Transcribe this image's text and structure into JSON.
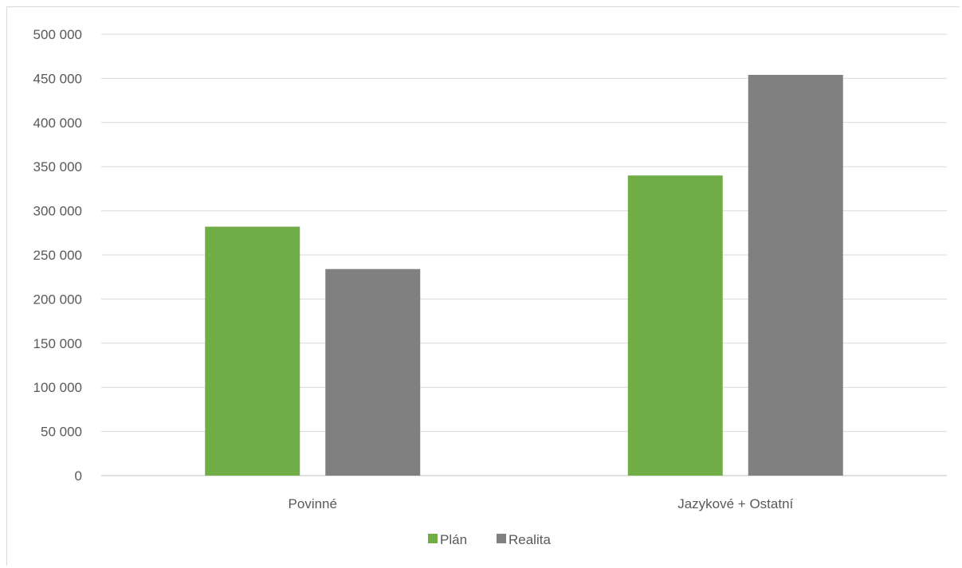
{
  "chart_data": {
    "type": "bar",
    "categories": [
      "Povinné",
      "Jazykové + Ostatní"
    ],
    "series": [
      {
        "name": "Plán",
        "values": [
          282000,
          340000
        ],
        "color": "#70ad47"
      },
      {
        "name": "Realita",
        "values": [
          234000,
          454000
        ],
        "color": "#808080"
      }
    ],
    "ylim": [
      0,
      500000
    ],
    "yticks": [
      0,
      50000,
      100000,
      150000,
      200000,
      250000,
      300000,
      350000,
      400000,
      450000,
      500000
    ],
    "ytick_labels": [
      "0",
      "50 000",
      "100 000",
      "150 000",
      "200 000",
      "250 000",
      "300 000",
      "350 000",
      "400 000",
      "450 000",
      "500 000"
    ],
    "grid": true,
    "legend_position": "bottom",
    "title": "",
    "xlabel": "",
    "ylabel": ""
  }
}
